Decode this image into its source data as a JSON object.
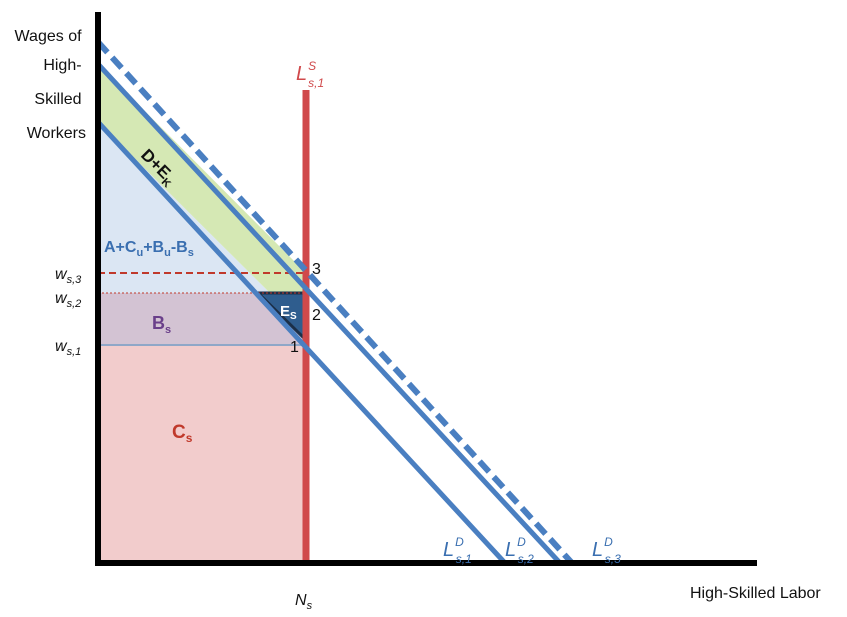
{
  "axes": {
    "y_label_lines": [
      "Wages of",
      "High-",
      "Skilled",
      "Workers"
    ],
    "x_label": "High-Skilled Labor",
    "x_tick_main": "N",
    "x_tick_sub": "s"
  },
  "wage_levels": [
    {
      "main": "w",
      "sub": "s,3"
    },
    {
      "main": "w",
      "sub": "s,2"
    },
    {
      "main": "w",
      "sub": "s,1"
    }
  ],
  "points": [
    "3",
    "2",
    "1"
  ],
  "supply_curve": {
    "main": "L",
    "sub": "s,1",
    "sup": "S"
  },
  "demand_curves": [
    {
      "main": "L",
      "sub": "s,1",
      "sup": "D"
    },
    {
      "main": "L",
      "sub": "s,2",
      "sup": "D"
    },
    {
      "main": "L",
      "sub": "s,3",
      "sup": "D"
    }
  ],
  "regions": {
    "d_e": {
      "main": "D+E",
      "sub": "K"
    },
    "a_c_b": {
      "p1": "A+C",
      "s1": "u",
      "p2": "+B",
      "s2": "u",
      "p3": "-B",
      "s3": "s"
    },
    "e_s": {
      "main": "E",
      "sub": "S"
    },
    "b_s": {
      "main": "B",
      "sub": "s"
    },
    "c_s": {
      "main": "C",
      "sub": "s"
    }
  },
  "colors": {
    "axis": "#000000",
    "demand": "#4a7fc1",
    "supply": "#d0494b",
    "green_fill": "#d5e8b4",
    "blue_fill": "#dbe6f3",
    "purple_fill": "#d3c3d3",
    "red_fill": "#f2cccc",
    "triangle_fill": "#2f5d8e",
    "purple_text": "#6a3f8a",
    "red_text": "#c0392b",
    "blue_text": "#3a6fb0"
  }
}
